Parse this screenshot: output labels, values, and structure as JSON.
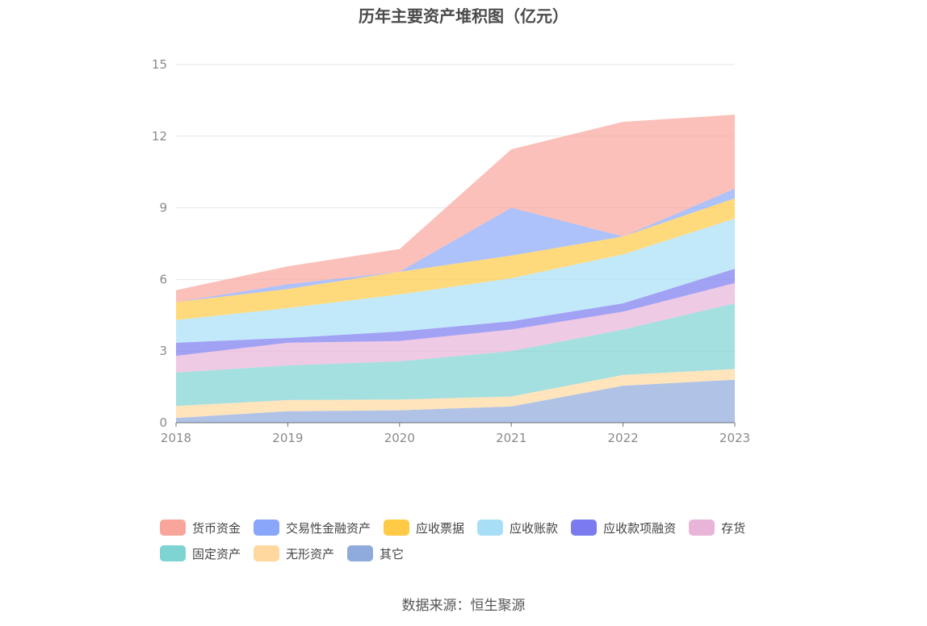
{
  "chart_data": {
    "type": "area",
    "stacked": true,
    "title": "历年主要资产堆积图（亿元）",
    "categories": [
      "2018",
      "2019",
      "2020",
      "2021",
      "2022",
      "2023"
    ],
    "ylim": [
      0,
      15
    ],
    "yticks": [
      0,
      3,
      6,
      9,
      12,
      15
    ],
    "grid": true,
    "legend_position": "bottom",
    "series": [
      {
        "name": "其它",
        "color": "#8FAADC",
        "values": [
          0.2,
          0.48,
          0.52,
          0.68,
          1.55,
          1.8
        ]
      },
      {
        "name": "无形资产",
        "color": "#FFD8A0",
        "values": [
          0.5,
          0.47,
          0.45,
          0.42,
          0.45,
          0.45
        ]
      },
      {
        "name": "固定资产",
        "color": "#7ED3D3",
        "values": [
          1.4,
          1.45,
          1.6,
          1.9,
          1.9,
          2.75
        ]
      },
      {
        "name": "存货",
        "color": "#E8B4D8",
        "values": [
          0.7,
          0.95,
          0.85,
          0.9,
          0.75,
          0.85
        ]
      },
      {
        "name": "应收款项融资",
        "color": "#7B7BEF",
        "values": [
          0.55,
          0.2,
          0.4,
          0.35,
          0.35,
          0.6
        ]
      },
      {
        "name": "应收账款",
        "color": "#A8DFF7",
        "values": [
          0.95,
          1.25,
          1.55,
          1.8,
          2.05,
          2.1
        ]
      },
      {
        "name": "应收票据",
        "color": "#FFCA45",
        "values": [
          0.75,
          0.8,
          0.95,
          0.95,
          0.75,
          0.85
        ]
      },
      {
        "name": "交易性金融资产",
        "color": "#8AA6FA",
        "values": [
          0.0,
          0.2,
          0.0,
          2.0,
          0.0,
          0.4
        ]
      },
      {
        "name": "货币资金",
        "color": "#F8A59B",
        "values": [
          0.5,
          0.75,
          0.95,
          2.45,
          4.8,
          3.1
        ]
      }
    ]
  },
  "legend": {
    "row1": [
      "货币资金",
      "交易性金融资产",
      "应收票据",
      "应收账款",
      "应收款项融资",
      "存货"
    ],
    "row2": [
      "固定资产",
      "无形资产",
      "其它"
    ]
  },
  "footer": {
    "source": "数据来源：恒生聚源"
  }
}
